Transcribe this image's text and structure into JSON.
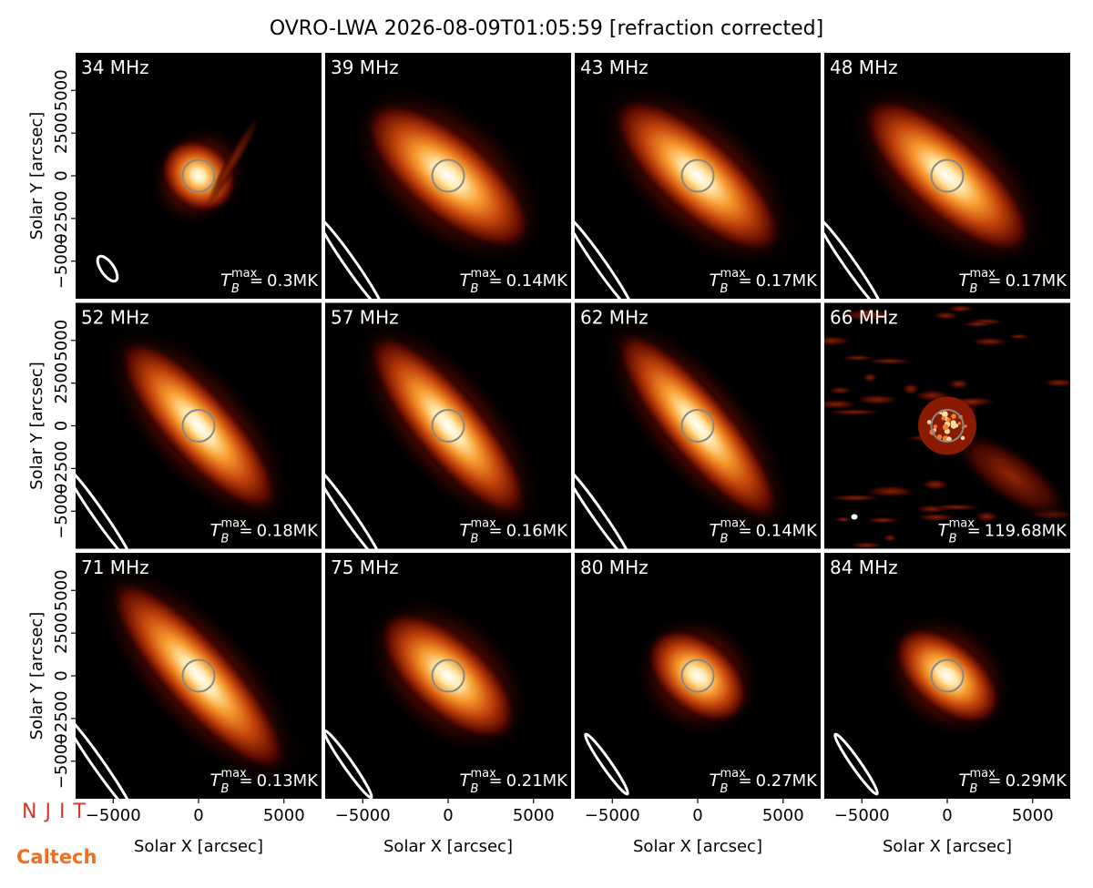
{
  "chart_data": {
    "type": "image-grid",
    "title": "OVRO-LWA 2026-08-09T01:05:59 [refraction corrected]",
    "xlabel": "Solar X [arcsec]",
    "ylabel": "Solar Y [arcsec]",
    "xlim": [
      -7200,
      7200
    ],
    "ylim": [
      -7200,
      7200
    ],
    "xticks": [
      {
        "value": -5000,
        "label": "−5000"
      },
      0,
      5000
    ],
    "yticks": [
      {
        "value": -5000,
        "label": "−5000"
      },
      {
        "value": -2500,
        "label": "−2500"
      },
      0,
      2500,
      5000
    ],
    "tb_symbol": "T",
    "tb_sub": "B",
    "tb_sup": "max",
    "tb_equals": "=",
    "panels": [
      {
        "freq": "34 MHz",
        "tb_value": "0.3MK"
      },
      {
        "freq": "39 MHz",
        "tb_value": "0.14MK"
      },
      {
        "freq": "43 MHz",
        "tb_value": "0.17MK"
      },
      {
        "freq": "48 MHz",
        "tb_value": "0.17MK"
      },
      {
        "freq": "52 MHz",
        "tb_value": "0.18MK"
      },
      {
        "freq": "57 MHz",
        "tb_value": "0.16MK"
      },
      {
        "freq": "62 MHz",
        "tb_value": "0.14MK"
      },
      {
        "freq": "66 MHz",
        "tb_value": "119.68MK"
      },
      {
        "freq": "71 MHz",
        "tb_value": "0.13MK"
      },
      {
        "freq": "75 MHz",
        "tb_value": "0.21MK"
      },
      {
        "freq": "80 MHz",
        "tb_value": "0.27MK"
      },
      {
        "freq": "84 MHz",
        "tb_value": "0.29MK"
      }
    ],
    "logos": [
      "NJIT",
      "Caltech"
    ]
  }
}
